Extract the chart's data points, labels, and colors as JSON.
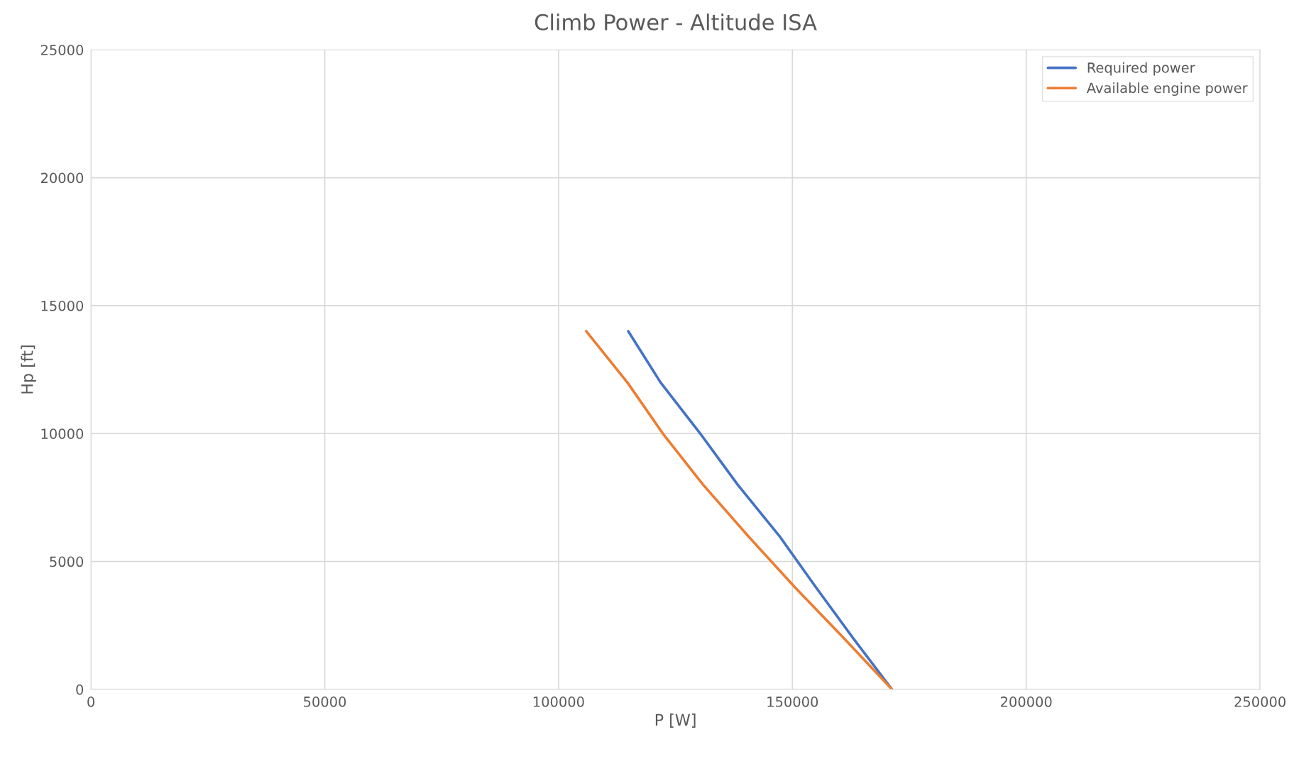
{
  "chart_data": {
    "type": "line",
    "title": "Climb Power - Altitude ISA",
    "xlabel": "P [W]",
    "ylabel": "Hp [ft]",
    "series": [
      {
        "name": "Required power",
        "color": "#4472c4",
        "x": [
          171300,
          163000,
          155000,
          147200,
          138300,
          130300,
          121800,
          114900
        ],
        "values": [
          0,
          2000,
          4000,
          6000,
          8000,
          10000,
          12000,
          14000
        ]
      },
      {
        "name": "Available engine power",
        "color": "#ed7d31",
        "x": [
          171300,
          161000,
          150500,
          140500,
          130900,
          122300,
          114700,
          105900
        ],
        "values": [
          0,
          2000,
          4000,
          6000,
          8000,
          10000,
          12000,
          14000
        ]
      }
    ],
    "xlim": [
      0,
      250000
    ],
    "xticks": [
      0,
      50000,
      100000,
      150000,
      200000,
      250000
    ],
    "ylim": [
      0,
      25000
    ],
    "yticks": [
      0,
      5000,
      10000,
      15000,
      20000,
      25000
    ],
    "grid": true,
    "legend": "top right",
    "marker": "none",
    "line_style": "solid"
  }
}
